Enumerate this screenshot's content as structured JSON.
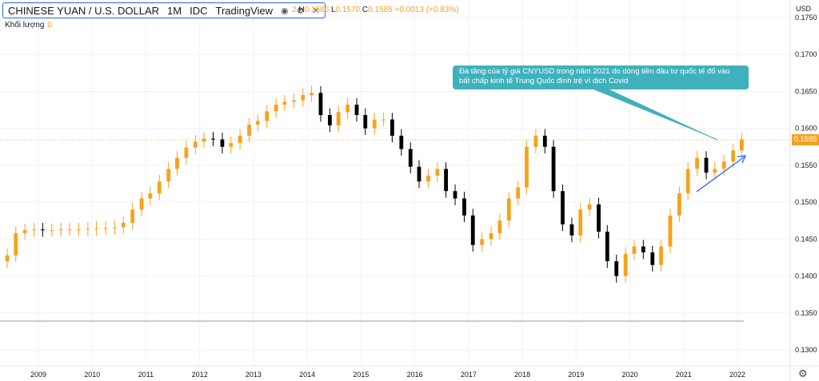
{
  "header": {
    "symbol": "CHINESE YUAN / U.S. DOLLAR",
    "interval": "1M",
    "exchange": "IDC",
    "source": "TradingView",
    "eye_icon": "eye-icon",
    "settings_icon": "gear-icon",
    "close_icon": "close-icon"
  },
  "ohlc": {
    "open_tail": "2",
    "h_label": "H",
    "h_value": "0.1586",
    "l_label": "L",
    "l_value": "0.1570",
    "c_label": "C",
    "c_value": "0.1585",
    "change": "+0.0013 (+0.83%)"
  },
  "volume": {
    "label": "Khối lượng",
    "value": "0"
  },
  "currency": "USD",
  "last_price": "0.1585",
  "annotation": "Đà tăng của tỷ giá CNYUSD trong năm 2021 do dòng tiền đầu tư quốc tế đổ vào bất chấp kinh tế Trung Quốc đình trệ vì dịch Covid",
  "colors": {
    "up": "#f7a21b",
    "down": "#000000",
    "annotation_bg": "#3fb1bc",
    "arrow": "#2962ff",
    "grid": "#f0f3fa"
  },
  "chart_data": {
    "type": "candlestick",
    "title": "CHINESE YUAN / U.S. DOLLAR",
    "y_ticks": [
      "0.1750",
      "0.1700",
      "0.1650",
      "0.1600",
      "0.1550",
      "0.1500",
      "0.1450",
      "0.1400",
      "0.1350",
      "0.1300"
    ],
    "ylim": [
      0.128,
      0.176
    ],
    "x_ticks": [
      "2009",
      "2010",
      "2011",
      "2012",
      "2013",
      "2014",
      "2015",
      "2016",
      "2017",
      "2018",
      "2019",
      "2020",
      "2021",
      "2022"
    ],
    "xlim": [
      2008.35,
      2022.3
    ],
    "points": [
      [
        2008.42,
        0.1428
      ],
      [
        2008.58,
        0.1458
      ],
      [
        2008.75,
        0.1462
      ],
      [
        2008.92,
        0.1463
      ],
      [
        2009.08,
        0.1462
      ],
      [
        2009.25,
        0.1462
      ],
      [
        2009.42,
        0.1463
      ],
      [
        2009.58,
        0.1463
      ],
      [
        2009.75,
        0.1463
      ],
      [
        2009.92,
        0.1464
      ],
      [
        2010.08,
        0.1465
      ],
      [
        2010.25,
        0.1465
      ],
      [
        2010.42,
        0.1466
      ],
      [
        2010.58,
        0.1472
      ],
      [
        2010.75,
        0.149
      ],
      [
        2010.92,
        0.1505
      ],
      [
        2011.08,
        0.1512
      ],
      [
        2011.25,
        0.1528
      ],
      [
        2011.42,
        0.1545
      ],
      [
        2011.58,
        0.156
      ],
      [
        2011.75,
        0.1574
      ],
      [
        2011.92,
        0.1582
      ],
      [
        2012.08,
        0.1586
      ],
      [
        2012.25,
        0.1585
      ],
      [
        2012.42,
        0.1575
      ],
      [
        2012.58,
        0.158
      ],
      [
        2012.75,
        0.159
      ],
      [
        2012.92,
        0.1605
      ],
      [
        2013.08,
        0.161
      ],
      [
        2013.25,
        0.1623
      ],
      [
        2013.42,
        0.1632
      ],
      [
        2013.58,
        0.1636
      ],
      [
        2013.75,
        0.1638
      ],
      [
        2013.92,
        0.1645
      ],
      [
        2014.08,
        0.1648
      ],
      [
        2014.25,
        0.1618
      ],
      [
        2014.42,
        0.1604
      ],
      [
        2014.58,
        0.1622
      ],
      [
        2014.75,
        0.1632
      ],
      [
        2014.92,
        0.1618
      ],
      [
        2015.08,
        0.16
      ],
      [
        2015.25,
        0.1612
      ],
      [
        2015.42,
        0.1612
      ],
      [
        2015.58,
        0.159
      ],
      [
        2015.75,
        0.1572
      ],
      [
        2015.92,
        0.1548
      ],
      [
        2016.08,
        0.1528
      ],
      [
        2016.25,
        0.1536
      ],
      [
        2016.42,
        0.1545
      ],
      [
        2016.58,
        0.1515
      ],
      [
        2016.75,
        0.1505
      ],
      [
        2016.92,
        0.1482
      ],
      [
        2017.08,
        0.1442
      ],
      [
        2017.25,
        0.145
      ],
      [
        2017.42,
        0.1458
      ],
      [
        2017.58,
        0.1475
      ],
      [
        2017.75,
        0.1505
      ],
      [
        2017.92,
        0.152
      ],
      [
        2018.08,
        0.1575
      ],
      [
        2018.25,
        0.159
      ],
      [
        2018.42,
        0.1575
      ],
      [
        2018.58,
        0.1515
      ],
      [
        2018.75,
        0.147
      ],
      [
        2018.92,
        0.1455
      ],
      [
        2019.08,
        0.149
      ],
      [
        2019.25,
        0.1497
      ],
      [
        2019.42,
        0.146
      ],
      [
        2019.58,
        0.142
      ],
      [
        2019.75,
        0.14
      ],
      [
        2019.92,
        0.143
      ],
      [
        2020.08,
        0.144
      ],
      [
        2020.25,
        0.1432
      ],
      [
        2020.42,
        0.1415
      ],
      [
        2020.58,
        0.144
      ],
      [
        2020.75,
        0.1482
      ],
      [
        2020.92,
        0.1512
      ],
      [
        2021.08,
        0.1545
      ],
      [
        2021.25,
        0.156
      ],
      [
        2021.42,
        0.154
      ],
      [
        2021.58,
        0.1545
      ],
      [
        2021.75,
        0.1555
      ],
      [
        2021.92,
        0.157
      ],
      [
        2022.08,
        0.1585
      ]
    ]
  }
}
